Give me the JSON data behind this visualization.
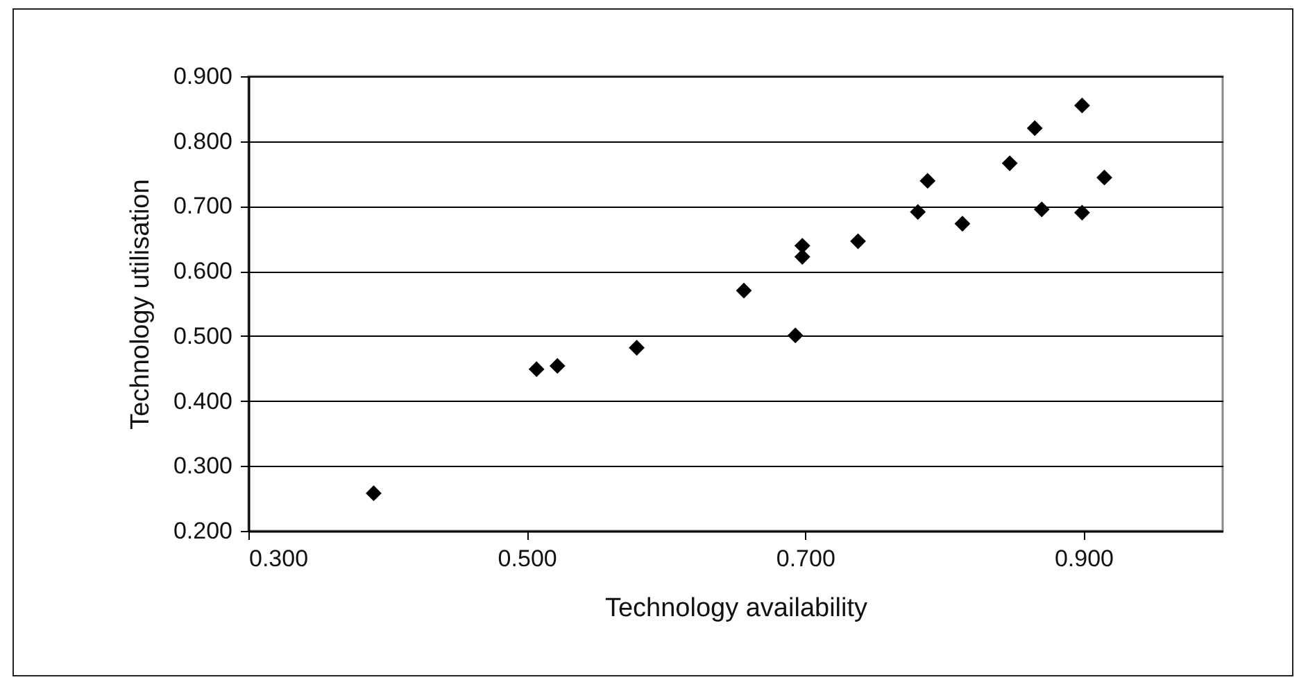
{
  "chart_data": {
    "type": "scatter",
    "xlabel": "Technology availability",
    "ylabel": "Technology utilisation",
    "x": [
      0.39,
      0.507,
      0.522,
      0.579,
      0.656,
      0.693,
      0.698,
      0.698,
      0.738,
      0.788,
      0.781,
      0.813,
      0.847,
      0.865,
      0.87,
      0.899,
      0.899,
      0.915
    ],
    "series": [
      {
        "color": "#000000",
        "values": [
          0.258,
          0.449,
          0.454,
          0.482,
          0.57,
          0.501,
          0.639,
          0.622,
          0.646,
          0.739,
          0.691,
          0.673,
          0.766,
          0.82,
          0.695,
          0.855,
          0.69,
          0.744
        ]
      }
    ],
    "xlim": [
      0.3,
      1.0
    ],
    "xticks": [
      {
        "value": 0.3,
        "label": "0.300"
      },
      {
        "value": 0.5,
        "label": "0.500"
      },
      {
        "value": 0.7,
        "label": "0.700"
      },
      {
        "value": 0.9,
        "label": "0.900"
      }
    ],
    "ylim": [
      0.2,
      0.9
    ],
    "yticks": [
      {
        "value": 0.2,
        "label": "0.200"
      },
      {
        "value": 0.3,
        "label": "0.300"
      },
      {
        "value": 0.4,
        "label": "0.400"
      },
      {
        "value": 0.5,
        "label": "0.500"
      },
      {
        "value": 0.6,
        "label": "0.600"
      },
      {
        "value": 0.7,
        "label": "0.700"
      },
      {
        "value": 0.8,
        "label": "0.800"
      },
      {
        "value": 0.9,
        "label": "0.900"
      }
    ],
    "grid": "y",
    "marker": "diamond"
  }
}
